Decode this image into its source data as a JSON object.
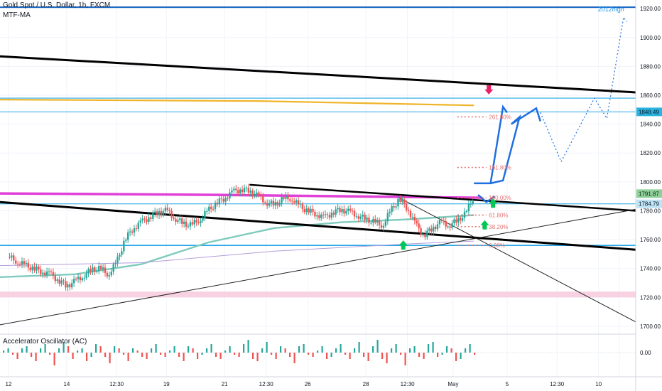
{
  "header": {
    "symbol": "Gold Spot / U.S. Dollar, 1h, FXCM",
    "indicator": "MTF-MA"
  },
  "oscillator": {
    "title": "Accelerator Oscillator (AC)",
    "zero_label": "0.00"
  },
  "chart_data": {
    "type": "candlestick",
    "y_axis": {
      "ylim": [
        1696,
        1926
      ],
      "ticks": [
        1700,
        1720,
        1740,
        1760,
        1780,
        1800,
        1820,
        1840,
        1860,
        1880,
        1900,
        1920
      ]
    },
    "x_axis": {
      "ticks": [
        {
          "label": "12",
          "x": 0
        },
        {
          "label": "14",
          "x": 7
        },
        {
          "label": "12:30",
          "x": 13
        },
        {
          "label": "19",
          "x": 19
        },
        {
          "label": "21",
          "x": 26
        },
        {
          "label": "12:30",
          "x": 31
        },
        {
          "label": "26",
          "x": 36
        },
        {
          "label": "28",
          "x": 43
        },
        {
          "label": "12:30",
          "x": 48
        },
        {
          "label": "May",
          "x": 53.5
        },
        {
          "label": "5",
          "x": 60
        },
        {
          "label": "12:30",
          "x": 66
        },
        {
          "label": "10",
          "x": 71
        },
        {
          "label": "",
          "x": 73.5
        }
      ]
    },
    "price_badges": [
      {
        "value": "1848.49",
        "bg": "#2bb3e0",
        "fg": "#0a1a2b"
      },
      {
        "value": "1791.87",
        "bg": "#8fcf9a",
        "fg": "#0a2b12"
      },
      {
        "value": "1784.79",
        "bg": "#bfe3f3",
        "fg": "#0a1a2b"
      }
    ],
    "annotations": [
      {
        "text": "2012high",
        "x": 72.5,
        "y": 1918,
        "color": "#2196f3"
      }
    ],
    "fib_levels": [
      {
        "label": "261.80%",
        "y": 1845
      },
      {
        "label": "161.80%",
        "y": 1810
      },
      {
        "label": "100.00%",
        "y": 1789
      },
      {
        "label": "61.80%",
        "y": 1777
      },
      {
        "label": "38.20%",
        "y": 1769
      },
      {
        "label": "0.00%",
        "y": 1756
      }
    ],
    "price_path": [
      [
        0,
        1748
      ],
      [
        1,
        1745
      ],
      [
        2,
        1742
      ],
      [
        3,
        1740
      ],
      [
        4,
        1738
      ],
      [
        5,
        1736
      ],
      [
        6,
        1732
      ],
      [
        7,
        1728
      ],
      [
        8,
        1731
      ],
      [
        9,
        1735
      ],
      [
        10,
        1739
      ],
      [
        11,
        1740
      ],
      [
        12,
        1736
      ],
      [
        13,
        1744
      ],
      [
        14,
        1760
      ],
      [
        15,
        1768
      ],
      [
        16,
        1772
      ],
      [
        17,
        1776
      ],
      [
        18,
        1779
      ],
      [
        19,
        1780
      ],
      [
        20,
        1775
      ],
      [
        21,
        1771
      ],
      [
        22,
        1770
      ],
      [
        23,
        1774
      ],
      [
        24,
        1780
      ],
      [
        25,
        1785
      ],
      [
        26,
        1789
      ],
      [
        27,
        1793
      ],
      [
        28,
        1795
      ],
      [
        29,
        1794
      ],
      [
        30,
        1790
      ],
      [
        31,
        1786
      ],
      [
        32,
        1784
      ],
      [
        33,
        1788
      ],
      [
        34,
        1789
      ],
      [
        35,
        1783
      ],
      [
        36,
        1780
      ],
      [
        37,
        1778
      ],
      [
        38,
        1775
      ],
      [
        39,
        1779
      ],
      [
        40,
        1781
      ],
      [
        41,
        1779
      ],
      [
        42,
        1777
      ],
      [
        43,
        1774
      ],
      [
        44,
        1772
      ],
      [
        45,
        1770
      ],
      [
        46,
        1780
      ],
      [
        47,
        1788
      ],
      [
        48,
        1782
      ],
      [
        49,
        1770
      ],
      [
        50,
        1763
      ],
      [
        51,
        1768
      ],
      [
        52,
        1772
      ],
      [
        53,
        1770
      ],
      [
        54,
        1773
      ],
      [
        55,
        1778
      ],
      [
        56,
        1790
      ]
    ],
    "osc_values": [
      1,
      2,
      -1,
      -3,
      2,
      3,
      -2,
      -4,
      2,
      4,
      -1,
      -6,
      2,
      5,
      3,
      -3,
      1,
      2,
      -4,
      -2,
      4,
      3,
      -2,
      -5,
      3,
      2,
      -1,
      -4,
      2,
      1,
      -2,
      -3,
      2,
      4,
      -1,
      -2,
      1,
      3,
      -2,
      -4,
      3,
      2,
      -3,
      -1,
      2,
      4,
      -2,
      -3,
      1,
      3,
      -1,
      -2,
      4,
      6,
      -3,
      -4,
      2,
      5,
      -1,
      -3,
      3,
      2,
      -2,
      -5,
      3,
      4,
      -1,
      -2,
      1,
      3,
      -3,
      -2,
      2,
      4,
      -1,
      -3,
      2,
      5,
      -2,
      -4,
      3,
      6,
      -3,
      -5,
      2,
      4,
      -1,
      -6,
      2,
      3,
      -2,
      -3,
      4,
      5,
      -2,
      -1,
      3,
      2,
      -4,
      -3,
      2,
      4,
      -1,
      -2,
      3,
      6,
      -2,
      -5,
      4,
      3,
      -1,
      -2
    ]
  }
}
